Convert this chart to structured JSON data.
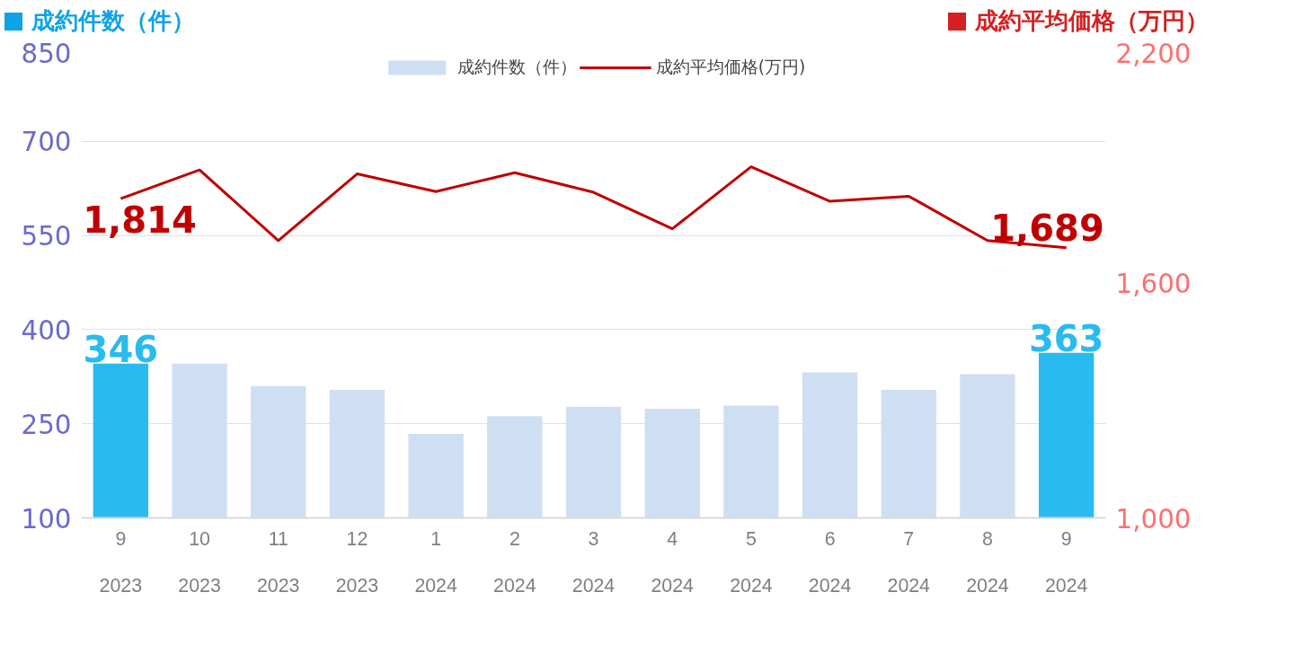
{
  "chart_data": {
    "type": "bar",
    "ylabel": "成約件数（件）",
    "y2label": "成約平均価格（万円）",
    "categories": [
      "9\n2023",
      "10\n2023",
      "11\n2023",
      "12\n2023",
      "1\n2024",
      "2\n2024",
      "3\n2024",
      "4\n2024",
      "5\n2024",
      "6\n2024",
      "7\n2024",
      "8\n2024",
      "9\n2024"
    ],
    "series": [
      {
        "name": "成約件数（件）",
        "color": "#cfdff3",
        "colors": [
          "#29bbef",
          "#cfdff3",
          "#cfdff3",
          "#cfdff3",
          "#cfdff3",
          "#cfdff3",
          "#cfdff3",
          "#cfdff3",
          "#cfdff3",
          "#cfdff3",
          "#cfdff3",
          "#cfdff3",
          "#29bbef"
        ],
        "values": [
          346,
          346,
          310,
          304,
          234,
          262,
          277,
          274,
          279,
          332,
          304,
          329,
          363
        ],
        "value_labels": [
          "346",
          null,
          null,
          null,
          null,
          null,
          null,
          null,
          null,
          null,
          null,
          null,
          "363"
        ]
      },
      {
        "name": "成約平均価格(万円)",
        "type": "line",
        "axis": "y2",
        "color": "#c00000",
        "values": [
          1814,
          1887,
          1707,
          1877,
          1832,
          1880,
          1830,
          1737,
          1895,
          1807,
          1820,
          1707,
          1689
        ],
        "value_labels": [
          "1,814",
          null,
          null,
          null,
          null,
          null,
          null,
          null,
          null,
          null,
          null,
          null,
          "1,689"
        ]
      }
    ],
    "ylim": [
      100,
      850
    ],
    "yticks": [
      100,
      250,
      400,
      550,
      700,
      850
    ],
    "y2lim": [
      1000,
      2200
    ],
    "y2ticks": [
      {
        "value": 1000,
        "label": "1,000"
      },
      {
        "value": 1600,
        "label": "1,600"
      },
      {
        "value": 2200,
        "label": "2,200"
      }
    ],
    "grid": "y",
    "legend": "top"
  }
}
